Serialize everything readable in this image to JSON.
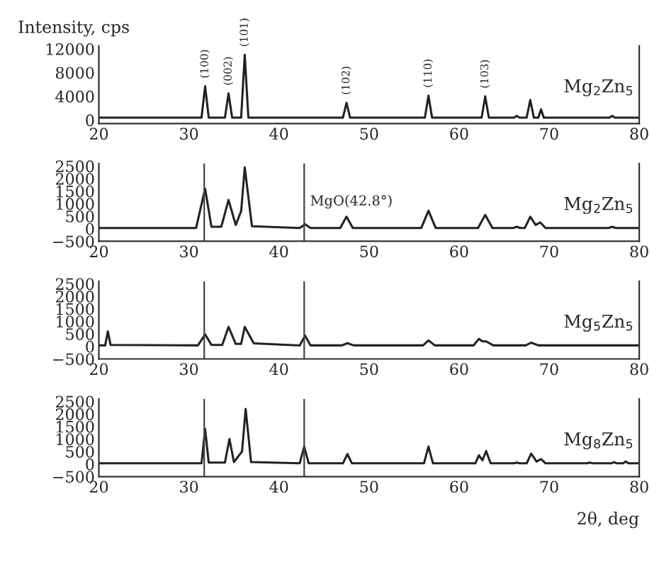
{
  "chart_data": [
    {
      "type": "line",
      "ylabel": "Intensity, cps",
      "xlim": [
        20,
        80
      ],
      "xticks": [
        20,
        30,
        40,
        50,
        60,
        70,
        80
      ],
      "ylim": [
        -600,
        12500
      ],
      "yticks": [
        0,
        4000,
        8000,
        12000
      ],
      "grid": false,
      "legend": false,
      "series": [
        {
          "color": "#222222",
          "x": [
            20,
            31.4,
            31.8,
            32.2,
            34.0,
            34.4,
            34.8,
            35.8,
            36.2,
            36.6,
            47.1,
            47.5,
            47.9,
            56.2,
            56.6,
            57.0,
            62.5,
            62.9,
            63.3,
            66.1,
            66.4,
            66.7,
            67.5,
            67.9,
            68.3,
            68.8,
            69.1,
            69.4,
            76.7,
            77.0,
            77.3,
            80
          ],
          "values": [
            400,
            400,
            5700,
            400,
            400,
            4500,
            400,
            400,
            11000,
            400,
            400,
            2900,
            400,
            400,
            4100,
            400,
            400,
            4000,
            400,
            400,
            700,
            400,
            400,
            3400,
            400,
            400,
            1800,
            400,
            400,
            700,
            400,
            400
          ]
        }
      ],
      "annotations": [
        {
          "text": "(100)",
          "x": 31.8,
          "y": 5700
        },
        {
          "text": "(002)",
          "x": 34.4,
          "y": 4500
        },
        {
          "text": "(101)",
          "x": 36.2,
          "y": 11000
        },
        {
          "text": "(102)",
          "x": 47.5,
          "y": 2900
        },
        {
          "text": "(110)",
          "x": 56.6,
          "y": 4100
        },
        {
          "text": "(103)",
          "x": 62.9,
          "y": 4000
        },
        "Mg$_{2}$Zn$_{5}$"
      ]
    },
    {
      "type": "line",
      "xlim": [
        20,
        80
      ],
      "xticks": [
        20,
        30,
        40,
        50,
        60,
        70,
        80
      ],
      "ylim": [
        -500,
        2600
      ],
      "yticks": [
        -500,
        0,
        500,
        1000,
        1500,
        2000,
        2500
      ],
      "grid": false,
      "legend": false,
      "series": [
        {
          "color": "#222222",
          "x": [
            20,
            30.8,
            31.8,
            32.5,
            33.6,
            34.4,
            35.2,
            35.8,
            36.2,
            37.0,
            42.3,
            42.9,
            43.5,
            46.8,
            47.5,
            48.2,
            55.8,
            56.6,
            57.4,
            62.1,
            62.9,
            63.7,
            66.0,
            66.4,
            66.8,
            67.3,
            67.9,
            68.5,
            69.0,
            69.6,
            76.6,
            77.0,
            77.4,
            80
          ],
          "values": [
            30,
            30,
            1600,
            80,
            80,
            1150,
            150,
            700,
            2450,
            100,
            30,
            180,
            30,
            30,
            480,
            30,
            30,
            720,
            30,
            30,
            550,
            30,
            30,
            80,
            30,
            30,
            480,
            150,
            250,
            30,
            30,
            80,
            30,
            30
          ]
        }
      ],
      "ref_lines": [
        {
          "axis": "x",
          "value": 31.7,
          "color": "#444444"
        },
        {
          "axis": "x",
          "value": 42.8,
          "color": "#444444"
        }
      ],
      "annotations": [
        {
          "text": "MgO(42.8°)",
          "x": 42.8,
          "y": 180
        },
        "Mg$_{2}$Zn$_{5}$"
      ]
    },
    {
      "type": "line",
      "xlim": [
        20,
        80
      ],
      "xticks": [
        20,
        30,
        40,
        50,
        60,
        70,
        80
      ],
      "ylim": [
        -500,
        2600
      ],
      "yticks": [
        -500,
        0,
        500,
        1000,
        1500,
        2000,
        2500
      ],
      "grid": false,
      "legend": false,
      "series": [
        {
          "color": "#222222",
          "x": [
            20,
            20.7,
            21.0,
            21.3,
            31.0,
            31.8,
            32.5,
            33.7,
            34.4,
            35.2,
            35.8,
            36.2,
            37.2,
            42.3,
            42.9,
            43.5,
            47.0,
            47.6,
            48.3,
            56.0,
            56.6,
            57.3,
            61.6,
            62.2,
            62.6,
            63.0,
            63.8,
            67.4,
            68.0,
            68.8,
            80
          ],
          "values": [
            40,
            40,
            600,
            60,
            40,
            480,
            60,
            60,
            780,
            100,
            100,
            780,
            120,
            40,
            430,
            40,
            40,
            130,
            40,
            40,
            240,
            40,
            40,
            300,
            200,
            200,
            40,
            40,
            150,
            40,
            40
          ]
        }
      ],
      "ref_lines": [
        {
          "axis": "x",
          "value": 31.7,
          "color": "#444444"
        },
        {
          "axis": "x",
          "value": 42.8,
          "color": "#444444"
        }
      ],
      "annotations": [
        "Mg$_{5}$Zn$_{5}$"
      ]
    },
    {
      "type": "line",
      "xlabel": "2θ, deg",
      "xlim": [
        20,
        80
      ],
      "xticks": [
        20,
        30,
        40,
        50,
        60,
        70,
        80
      ],
      "ylim": [
        -500,
        2600
      ],
      "yticks": [
        -500,
        0,
        500,
        1000,
        1500,
        2000,
        2500
      ],
      "grid": false,
      "legend": false,
      "series": [
        {
          "color": "#222222",
          "x": [
            20,
            31.4,
            31.8,
            32.2,
            34.0,
            34.5,
            35.0,
            35.9,
            36.3,
            36.9,
            42.3,
            42.8,
            43.3,
            47.1,
            47.6,
            48.1,
            56.1,
            56.6,
            57.1,
            61.8,
            62.2,
            62.6,
            63.0,
            63.5,
            66.1,
            66.4,
            66.7,
            67.5,
            68.0,
            68.6,
            69.1,
            69.6,
            74.2,
            74.5,
            74.8,
            76.9,
            77.2,
            77.5,
            78.2,
            78.5,
            78.8,
            80
          ],
          "values": [
            30,
            30,
            1400,
            60,
            60,
            1000,
            80,
            500,
            2200,
            80,
            30,
            700,
            30,
            30,
            400,
            30,
            30,
            700,
            30,
            30,
            350,
            150,
            520,
            30,
            30,
            60,
            30,
            30,
            420,
            100,
            200,
            30,
            30,
            60,
            30,
            30,
            80,
            30,
            30,
            100,
            30,
            30
          ]
        }
      ],
      "ref_lines": [
        {
          "axis": "x",
          "value": 31.7,
          "color": "#444444"
        },
        {
          "axis": "x",
          "value": 42.8,
          "color": "#444444"
        }
      ],
      "annotations": [
        "Mg$_{8}$Zn$_{5}$"
      ]
    }
  ]
}
